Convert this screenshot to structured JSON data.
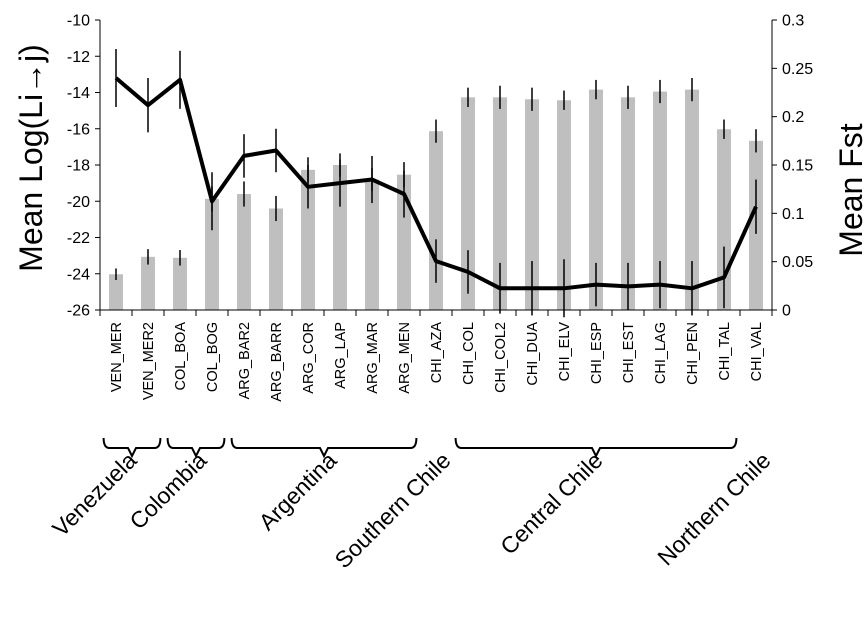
{
  "chart_data": {
    "type": "bar+line",
    "categories": [
      "VEN_MER",
      "VEN_MER2",
      "COL_BOA",
      "COL_BOG",
      "ARG_BAR2",
      "ARG_BARR",
      "ARG_COR",
      "ARG_LAP",
      "ARG_MAR",
      "ARG_MEN",
      "CHI_AZA",
      "CHI_COL",
      "CHI_COL2",
      "CHI_DUA",
      "CHI_ELV",
      "CHI_ESP",
      "CHI_EST",
      "CHI_LAG",
      "CHI_PEN",
      "CHI_TAL",
      "CHI_VAL"
    ],
    "bar_series": {
      "axis": "right",
      "color": "#bfbfbf",
      "values": [
        0.037,
        0.055,
        0.054,
        0.115,
        0.12,
        0.105,
        0.145,
        0.15,
        0.135,
        0.14,
        0.185,
        0.22,
        0.22,
        0.218,
        0.217,
        0.228,
        0.22,
        0.226,
        0.228,
        0.187,
        0.175
      ],
      "errors": [
        0.006,
        0.008,
        0.008,
        0.013,
        0.013,
        0.013,
        0.013,
        0.012,
        0.012,
        0.013,
        0.012,
        0.01,
        0.012,
        0.012,
        0.01,
        0.01,
        0.012,
        0.012,
        0.012,
        0.01,
        0.012
      ]
    },
    "line_series": {
      "axis": "left",
      "color": "#000000",
      "values": [
        -13.2,
        -14.7,
        -13.3,
        -20.0,
        -17.5,
        -17.2,
        -19.2,
        -19.0,
        -18.8,
        -19.6,
        -23.3,
        -23.9,
        -24.8,
        -24.8,
        -24.8,
        -24.6,
        -24.7,
        -24.6,
        -24.8,
        -24.2,
        -20.3
      ],
      "errors": [
        1.6,
        1.5,
        1.6,
        1.6,
        1.2,
        1.2,
        1.2,
        1.3,
        1.3,
        1.3,
        1.2,
        1.2,
        1.4,
        1.5,
        1.6,
        1.2,
        1.3,
        1.3,
        1.5,
        1.7,
        1.5
      ]
    },
    "y_left": {
      "label": "Mean Log(Li→j)",
      "min": -26,
      "max": -10,
      "ticks": [
        "-10",
        "-12",
        "-14",
        "-16",
        "-18",
        "-20",
        "-22",
        "-24",
        "-26"
      ],
      "tick_values": [
        -10,
        -12,
        -14,
        -16,
        -18,
        -20,
        -22,
        -24,
        -26
      ]
    },
    "y_right": {
      "label": "Mean Fst",
      "min": 0,
      "max": 0.3,
      "ticks": [
        "0.3",
        "0.25",
        "0.2",
        "0.15",
        "0.1",
        "0.05",
        "0"
      ],
      "tick_values": [
        0.3,
        0.25,
        0.2,
        0.15,
        0.1,
        0.05,
        0
      ]
    },
    "groups": [
      {
        "label": "Venezuela",
        "start": 0,
        "end": 1
      },
      {
        "label": "Colombia",
        "start": 2,
        "end": 3
      },
      {
        "label": "Argentina",
        "start": 4,
        "end": 9
      },
      {
        "label": "Southern Chile",
        "start": 10,
        "end": 10
      },
      {
        "label": "Central Chile",
        "start": 11,
        "end": 19
      },
      {
        "label": "Northern Chile",
        "start": 20,
        "end": 20
      }
    ],
    "grid": false,
    "legend": "none"
  }
}
